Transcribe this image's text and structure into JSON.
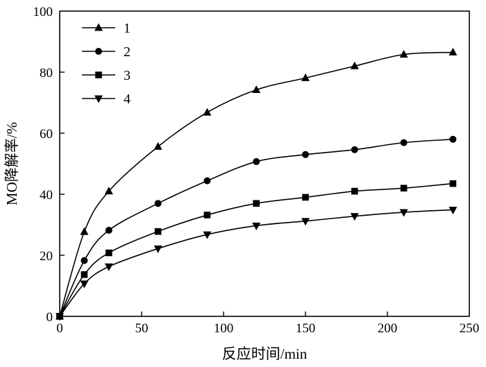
{
  "chart_data": {
    "type": "line",
    "title": "",
    "xlabel": "反应时间/min",
    "ylabel": "MO降解率/%",
    "xlim": [
      0,
      250
    ],
    "ylim": [
      0,
      100
    ],
    "xticks": [
      0,
      50,
      100,
      150,
      200,
      250
    ],
    "yticks": [
      0,
      20,
      40,
      60,
      80,
      100
    ],
    "grid": false,
    "legend_position": "top-left",
    "x": [
      0,
      15,
      30,
      60,
      90,
      120,
      150,
      180,
      210,
      240
    ],
    "series": [
      {
        "name": "1",
        "marker": "triangle-up",
        "values": [
          0,
          27.7,
          41.0,
          55.6,
          66.8,
          74.2,
          78.1,
          82.0,
          85.8,
          86.5
        ]
      },
      {
        "name": "2",
        "marker": "circle",
        "values": [
          0,
          18.3,
          28.2,
          37.0,
          44.4,
          50.7,
          53.0,
          54.6,
          56.9,
          58.0
        ]
      },
      {
        "name": "3",
        "marker": "square",
        "values": [
          0,
          13.7,
          20.8,
          27.8,
          33.2,
          37.0,
          39.0,
          41.0,
          42.0,
          43.5
        ]
      },
      {
        "name": "4",
        "marker": "triangle-down",
        "values": [
          0,
          10.7,
          16.3,
          22.2,
          26.8,
          29.7,
          31.2,
          32.8,
          34.1,
          34.9
        ]
      }
    ]
  }
}
